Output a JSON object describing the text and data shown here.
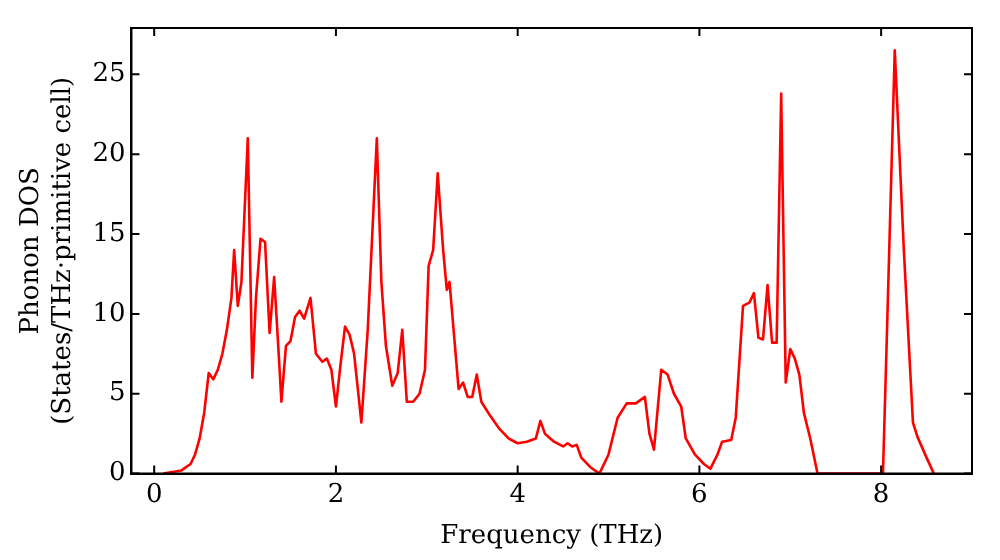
{
  "chart_data": {
    "type": "line",
    "xlabel": "Frequency (THz)",
    "ylabel": "Phonon DOS\n(States/THz·primitive cell)",
    "xlim": [
      -0.25,
      9.0
    ],
    "ylim": [
      0,
      27.9
    ],
    "xticks": [
      0,
      2,
      4,
      6,
      8
    ],
    "yticks": [
      0,
      5,
      10,
      15,
      20,
      25
    ],
    "grid": false,
    "legend": false,
    "marker": "none",
    "line_style": "solid",
    "series": [
      {
        "color": "#ff0000",
        "x": [
          0.1,
          0.2,
          0.3,
          0.4,
          0.45,
          0.5,
          0.55,
          0.6,
          0.65,
          0.7,
          0.75,
          0.8,
          0.85,
          0.88,
          0.92,
          0.96,
          1.03,
          1.08,
          1.12,
          1.17,
          1.22,
          1.27,
          1.32,
          1.36,
          1.4,
          1.45,
          1.5,
          1.55,
          1.6,
          1.65,
          1.72,
          1.78,
          1.85,
          1.9,
          1.95,
          2.0,
          2.05,
          2.1,
          2.15,
          2.2,
          2.28,
          2.35,
          2.45,
          2.5,
          2.55,
          2.62,
          2.68,
          2.73,
          2.78,
          2.85,
          2.92,
          2.98,
          3.02,
          3.07,
          3.12,
          3.18,
          3.22,
          3.25,
          3.35,
          3.4,
          3.45,
          3.5,
          3.55,
          3.6,
          3.7,
          3.8,
          3.9,
          4.0,
          4.1,
          4.2,
          4.25,
          4.3,
          4.4,
          4.5,
          4.55,
          4.6,
          4.65,
          4.7,
          4.8,
          4.9,
          5.0,
          5.1,
          5.2,
          5.3,
          5.4,
          5.45,
          5.5,
          5.58,
          5.65,
          5.72,
          5.8,
          5.85,
          5.95,
          6.05,
          6.12,
          6.2,
          6.25,
          6.35,
          6.4,
          6.48,
          6.55,
          6.6,
          6.65,
          6.7,
          6.75,
          6.8,
          6.85,
          6.9,
          6.95,
          7.0,
          7.05,
          7.1,
          7.15,
          7.22,
          7.3,
          8.02,
          8.06,
          8.15,
          8.25,
          8.35,
          8.4,
          8.5,
          8.58
        ],
        "values": [
          0,
          0.1,
          0.2,
          0.6,
          1.2,
          2.2,
          3.8,
          6.3,
          5.9,
          6.5,
          7.5,
          9,
          11,
          14,
          10.5,
          12,
          21,
          6,
          11,
          14.7,
          14.5,
          8.8,
          12.3,
          8.5,
          4.5,
          8,
          8.3,
          9.8,
          10.2,
          9.7,
          11,
          7.5,
          7,
          7.2,
          6.5,
          4.2,
          6.8,
          9.2,
          8.7,
          7.5,
          3.2,
          9,
          21,
          12,
          8,
          5.5,
          6.3,
          9,
          4.5,
          4.5,
          5,
          6.5,
          13,
          14,
          18.8,
          14,
          11.5,
          12,
          5.3,
          5.7,
          4.8,
          4.8,
          6.2,
          4.5,
          3.6,
          2.8,
          2.2,
          1.9,
          2.0,
          2.2,
          3.3,
          2.5,
          2.0,
          1.7,
          1.9,
          1.7,
          1.8,
          1.0,
          0.4,
          0,
          1.2,
          3.5,
          4.4,
          4.4,
          4.8,
          2.5,
          1.5,
          6.5,
          6.2,
          5,
          4.2,
          2.2,
          1.2,
          0.6,
          0.3,
          1.2,
          2.0,
          2.1,
          3.5,
          10.5,
          10.7,
          11.3,
          8.5,
          8.4,
          11.8,
          8.2,
          8.2,
          23.8,
          5.7,
          7.8,
          7.2,
          6.2,
          3.8,
          2.2,
          0,
          0,
          8,
          26.5,
          14,
          3.2,
          2.3,
          1,
          0
        ]
      }
    ]
  }
}
